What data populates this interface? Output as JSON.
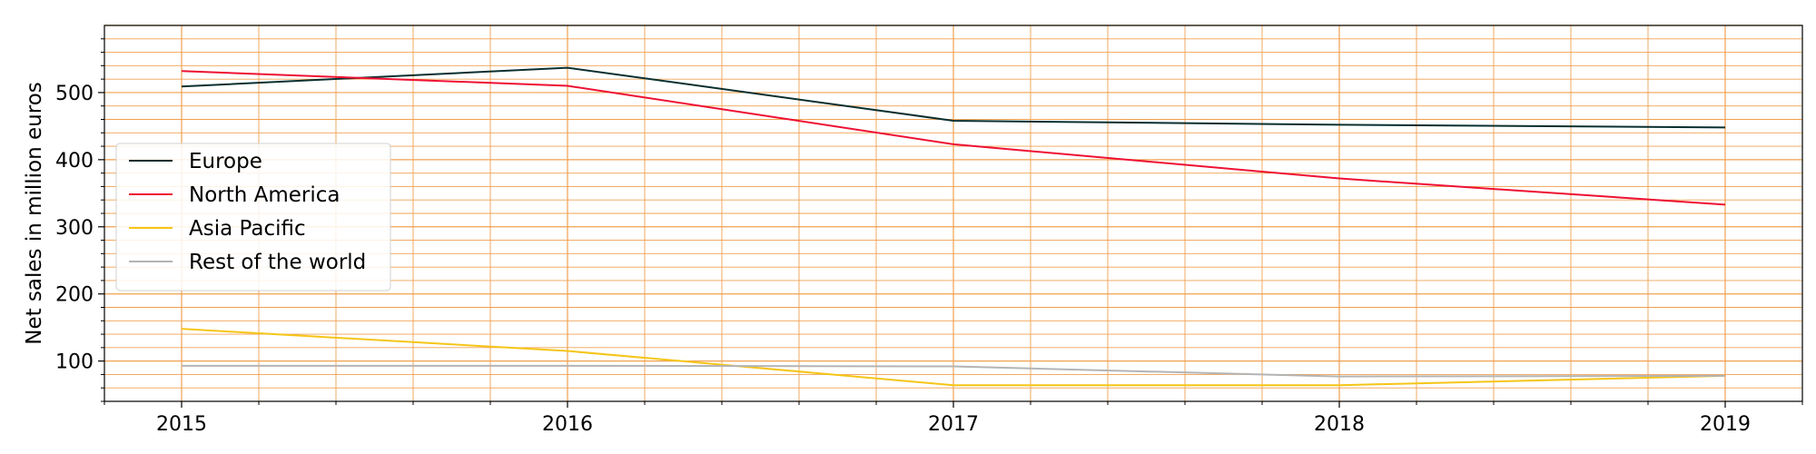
{
  "chart_data": {
    "type": "line",
    "title": "",
    "xlabel": "",
    "ylabel": "Net sales in million euros",
    "x": [
      "2015",
      "2016",
      "2017",
      "2018",
      "2019"
    ],
    "xlim": [
      2014.8,
      2019.2
    ],
    "ylim": [
      40,
      600
    ],
    "yticks": [
      100,
      200,
      300,
      400,
      500
    ],
    "grid": true,
    "minor_grid": true,
    "grid_color": "#f0a050",
    "legend_position": "center-left",
    "series": [
      {
        "name": "Europe",
        "color": "#0b2f2f",
        "values": [
          509,
          537,
          458,
          452,
          448
        ]
      },
      {
        "name": "North America",
        "color": "#ee1133",
        "values": [
          532,
          510,
          423,
          372,
          333
        ]
      },
      {
        "name": "Asia Pacific",
        "color": "#f5c518",
        "values": [
          148,
          115,
          64,
          64,
          78
        ]
      },
      {
        "name": "Rest of the world",
        "color": "#b4b4b4",
        "values": [
          93,
          93,
          92,
          77,
          78
        ]
      }
    ]
  }
}
